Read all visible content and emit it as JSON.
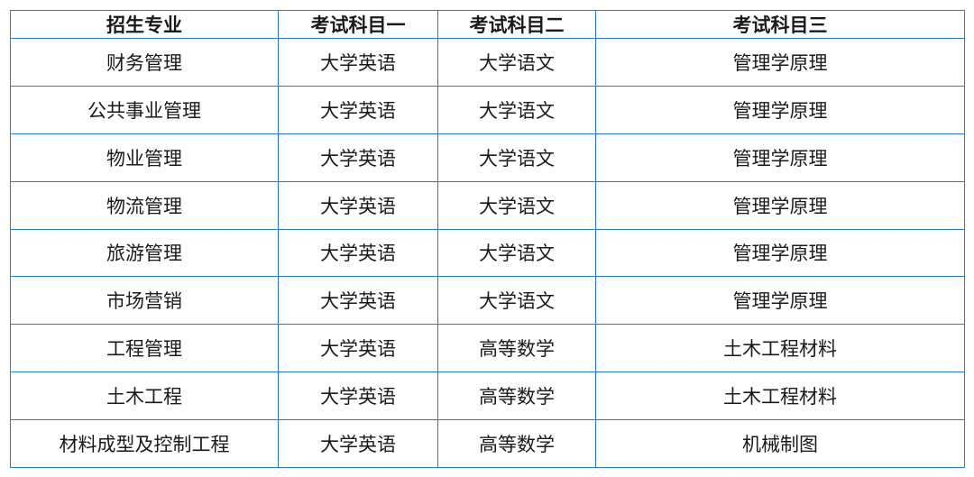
{
  "table": {
    "headers": [
      "招生专业",
      "考试科目一",
      "考试科目二",
      "考试科目三"
    ],
    "rows": [
      [
        "财务管理",
        "大学英语",
        "大学语文",
        "管理学原理"
      ],
      [
        "公共事业管理",
        "大学英语",
        "大学语文",
        "管理学原理"
      ],
      [
        "物业管理",
        "大学英语",
        "大学语文",
        "管理学原理"
      ],
      [
        "物流管理",
        "大学英语",
        "大学语文",
        "管理学原理"
      ],
      [
        "旅游管理",
        "大学英语",
        "大学语文",
        "管理学原理"
      ],
      [
        "市场营销",
        "大学英语",
        "大学语文",
        "管理学原理"
      ],
      [
        "工程管理",
        "大学英语",
        "高等数学",
        "土木工程材料"
      ],
      [
        "土木工程",
        "大学英语",
        "高等数学",
        "土木工程材料"
      ],
      [
        "材料成型及控制工程",
        "大学英语",
        "高等数学",
        "机械制图"
      ]
    ]
  },
  "colors": {
    "border": "#2b7bd0",
    "text": "#1a1a1a"
  }
}
